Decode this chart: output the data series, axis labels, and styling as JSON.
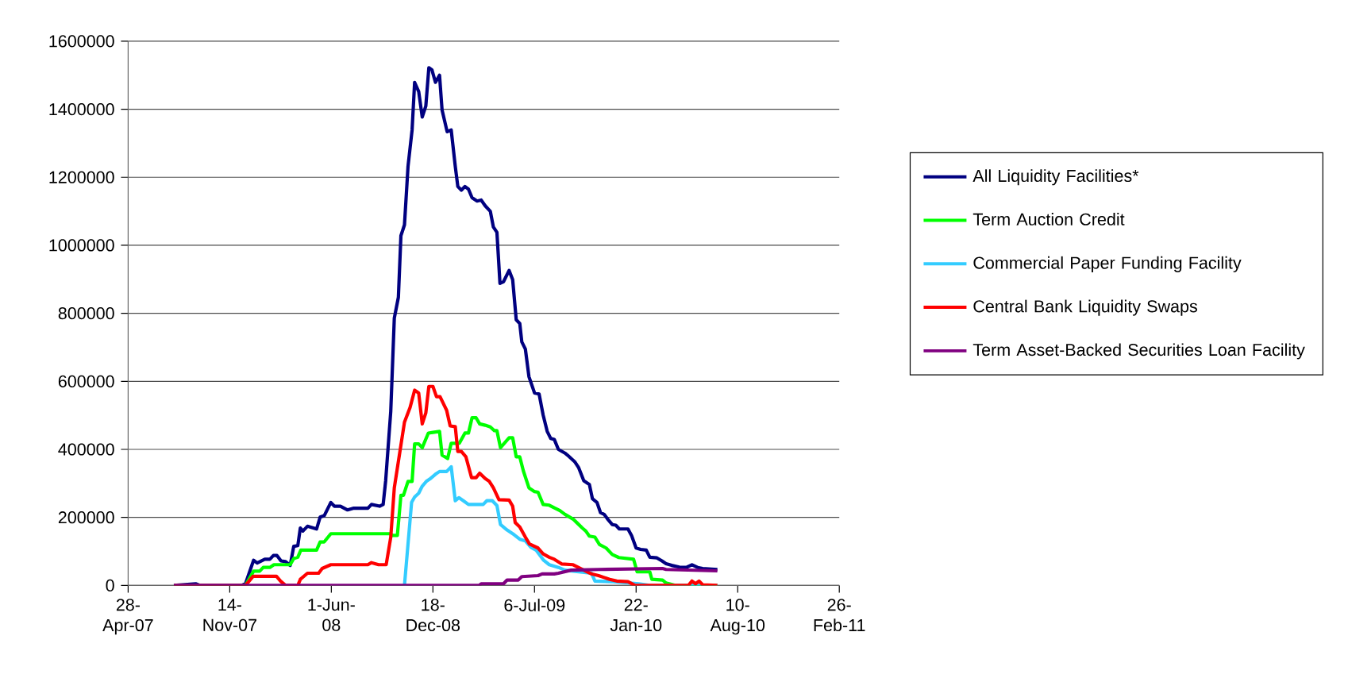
{
  "chart_data": {
    "type": "line",
    "xlim": [
      "2007-04-28",
      "2011-02-26"
    ],
    "xticks": [
      {
        "value": "2007-04-28",
        "label": "28-Apr-07"
      },
      {
        "value": "2007-11-14",
        "label": "14-Nov-07"
      },
      {
        "value": "2008-06-01",
        "label": "1-Jun-08"
      },
      {
        "value": "2008-12-18",
        "label": "18-Dec-08"
      },
      {
        "value": "2009-07-06",
        "label": "6-Jul-09"
      },
      {
        "value": "2010-01-22",
        "label": "22-Jan-10"
      },
      {
        "value": "2010-08-10",
        "label": "10-Aug-10"
      },
      {
        "value": "2011-02-26",
        "label": "26-Feb-11"
      }
    ],
    "ylim": [
      0,
      1600000
    ],
    "yticks": [
      0,
      200000,
      400000,
      600000,
      800000,
      1000000,
      1200000,
      1400000,
      1600000
    ],
    "grid": "y",
    "legend": "right",
    "marker": "none",
    "line_style": "solid",
    "series": [
      {
        "name": "All Liquidity Facilities*",
        "color": "#000080",
        "x": [
          "2007-07-27",
          "2007-09-08",
          "2007-09-17",
          "2007-12-07",
          "2007-12-15",
          "2007-12-31",
          "2008-01-07",
          "2008-01-22",
          "2008-02-01",
          "2008-02-08",
          "2008-02-15",
          "2008-02-23",
          "2008-03-03",
          "2008-03-12",
          "2008-03-19",
          "2008-03-27",
          "2008-04-01",
          "2008-04-06",
          "2008-04-15",
          "2008-05-03",
          "2008-05-10",
          "2008-05-18",
          "2008-05-31",
          "2008-06-07",
          "2008-06-19",
          "2008-07-03",
          "2008-07-14",
          "2008-08-12",
          "2008-08-19",
          "2008-09-04",
          "2008-09-11",
          "2008-09-16",
          "2008-09-26",
          "2008-10-03",
          "2008-10-11",
          "2008-10-16",
          "2008-10-23",
          "2008-10-30",
          "2008-11-07",
          "2008-11-12",
          "2008-11-20",
          "2008-11-27",
          "2008-12-04",
          "2008-12-10",
          "2008-12-16",
          "2008-12-23",
          "2008-12-31",
          "2009-01-05",
          "2009-01-15",
          "2009-01-23",
          "2009-01-31",
          "2009-02-05",
          "2009-02-12",
          "2009-02-19",
          "2009-02-26",
          "2009-03-05",
          "2009-03-15",
          "2009-03-23",
          "2009-03-31",
          "2009-04-10",
          "2009-04-16",
          "2009-04-23",
          "2009-04-29",
          "2009-05-06",
          "2009-05-17",
          "2009-05-24",
          "2009-05-31",
          "2009-06-07",
          "2009-06-11",
          "2009-06-18",
          "2009-06-25",
          "2009-07-06",
          "2009-07-15",
          "2009-07-23",
          "2009-07-31",
          "2009-08-07",
          "2009-08-14",
          "2009-08-22",
          "2009-09-04",
          "2009-09-09",
          "2009-09-23",
          "2009-10-01",
          "2009-10-11",
          "2009-10-22",
          "2009-10-28",
          "2009-11-06",
          "2009-11-13",
          "2009-11-20",
          "2009-11-27",
          "2009-12-06",
          "2009-12-13",
          "2009-12-20",
          "2010-01-06",
          "2010-01-13",
          "2010-01-22",
          "2010-01-31",
          "2010-02-11",
          "2010-02-18",
          "2010-03-04",
          "2010-03-14",
          "2010-03-22",
          "2010-04-02",
          "2010-04-17",
          "2010-05-01",
          "2010-05-12",
          "2010-05-23",
          "2010-06-02",
          "2010-07-01"
        ],
        "values": [
          0,
          5000,
          0,
          0,
          5000,
          74000,
          66000,
          77000,
          77000,
          88000,
          88000,
          72000,
          70000,
          59000,
          115000,
          117000,
          169000,
          160000,
          174000,
          166000,
          201000,
          205000,
          244000,
          233000,
          233000,
          222000,
          227000,
          227000,
          238000,
          233000,
          238000,
          308000,
          512000,
          786000,
          847000,
          1028000,
          1060000,
          1232000,
          1339000,
          1479000,
          1452000,
          1377000,
          1409000,
          1522000,
          1516000,
          1479000,
          1500000,
          1398000,
          1334000,
          1339000,
          1232000,
          1173000,
          1162000,
          1173000,
          1165000,
          1140000,
          1130000,
          1133000,
          1116000,
          1100000,
          1054000,
          1038000,
          888000,
          893000,
          926000,
          899000,
          781000,
          770000,
          716000,
          695000,
          614000,
          566000,
          563000,
          501000,
          453000,
          432000,
          429000,
          400000,
          389000,
          383000,
          364000,
          346000,
          308000,
          297000,
          255000,
          244000,
          214000,
          209000,
          195000,
          179000,
          177000,
          166000,
          166000,
          147000,
          110000,
          106000,
          104000,
          83000,
          81000,
          72000,
          64000,
          59000,
          54000,
          53000,
          61000,
          53000,
          50000,
          47000
        ]
      },
      {
        "name": "Term Auction Credit",
        "color": "#00ff00",
        "x": [
          "2007-07-27",
          "2007-12-15",
          "2007-12-31",
          "2008-01-12",
          "2008-01-19",
          "2008-02-01",
          "2008-02-09",
          "2008-03-12",
          "2008-03-19",
          "2008-03-27",
          "2008-04-02",
          "2008-05-03",
          "2008-05-10",
          "2008-05-18",
          "2008-05-31",
          "2008-09-24",
          "2008-09-30",
          "2008-10-09",
          "2008-10-16",
          "2008-10-21",
          "2008-10-30",
          "2008-11-07",
          "2008-11-12",
          "2008-11-20",
          "2008-11-27",
          "2008-12-09",
          "2008-12-18",
          "2008-12-31",
          "2009-01-05",
          "2009-01-16",
          "2009-01-23",
          "2009-02-08",
          "2009-02-19",
          "2009-02-26",
          "2009-03-05",
          "2009-03-13",
          "2009-03-20",
          "2009-03-31",
          "2009-04-10",
          "2009-04-18",
          "2009-04-23",
          "2009-04-30",
          "2009-05-17",
          "2009-05-24",
          "2009-05-31",
          "2009-06-07",
          "2009-06-14",
          "2009-06-25",
          "2009-07-06",
          "2009-07-13",
          "2009-07-23",
          "2009-08-04",
          "2009-08-14",
          "2009-08-25",
          "2009-09-04",
          "2009-09-20",
          "2009-09-27",
          "2009-10-08",
          "2009-10-15",
          "2009-10-22",
          "2009-11-02",
          "2009-11-11",
          "2009-11-24",
          "2009-12-06",
          "2009-12-19",
          "2010-01-17",
          "2010-01-24",
          "2010-02-18",
          "2010-02-22",
          "2010-03-15",
          "2010-03-22",
          "2010-04-09",
          "2010-07-01"
        ],
        "values": [
          0,
          0,
          42000,
          42000,
          53000,
          53000,
          61000,
          61000,
          79000,
          83000,
          104000,
          104000,
          128000,
          128000,
          152000,
          152000,
          147000,
          147000,
          265000,
          265000,
          306000,
          306000,
          416000,
          416000,
          405000,
          448000,
          450000,
          453000,
          383000,
          373000,
          418000,
          418000,
          448000,
          448000,
          493000,
          493000,
          475000,
          471000,
          466000,
          455000,
          455000,
          405000,
          434000,
          434000,
          378000,
          378000,
          337000,
          287000,
          276000,
          274000,
          238000,
          236000,
          228000,
          220000,
          209000,
          195000,
          185000,
          169000,
          160000,
          145000,
          142000,
          120000,
          110000,
          91000,
          82000,
          77000,
          40000,
          40000,
          18000,
          16000,
          7000,
          0,
          0
        ]
      },
      {
        "name": "Commercial Paper Funding Facility",
        "color": "#33ccff",
        "x": [
          "2008-10-23",
          "2008-11-06",
          "2008-11-12",
          "2008-11-20",
          "2008-11-27",
          "2008-12-05",
          "2008-12-12",
          "2008-12-23",
          "2008-12-31",
          "2009-01-14",
          "2009-01-23",
          "2009-01-31",
          "2009-02-07",
          "2009-02-16",
          "2009-02-26",
          "2009-03-27",
          "2009-04-03",
          "2009-04-14",
          "2009-04-23",
          "2009-04-30",
          "2009-05-13",
          "2009-05-27",
          "2009-06-07",
          "2009-06-18",
          "2009-06-29",
          "2009-07-09",
          "2009-07-24",
          "2009-08-04",
          "2009-08-22",
          "2009-09-04",
          "2009-10-01",
          "2009-10-26",
          "2009-11-02",
          "2009-12-07",
          "2010-01-27",
          "2010-02-18",
          "2010-07-01"
        ],
        "values": [
          0,
          244000,
          260000,
          271000,
          292000,
          306000,
          313000,
          327000,
          335000,
          335000,
          349000,
          249000,
          258000,
          249000,
          238000,
          238000,
          249000,
          249000,
          235000,
          179000,
          163000,
          149000,
          136000,
          131000,
          112000,
          104000,
          74000,
          61000,
          53000,
          45000,
          40000,
          36000,
          13000,
          11000,
          5000,
          0,
          0
        ]
      },
      {
        "name": "Central Bank Liquidity Swaps",
        "color": "#ff0000",
        "x": [
          "2007-07-27",
          "2007-12-15",
          "2007-12-30",
          "2008-02-14",
          "2008-02-22",
          "2008-03-03",
          "2008-03-27",
          "2008-04-01",
          "2008-04-15",
          "2008-05-07",
          "2008-05-14",
          "2008-05-31",
          "2008-08-12",
          "2008-08-19",
          "2008-09-02",
          "2008-09-17",
          "2008-09-26",
          "2008-10-03",
          "2008-10-23",
          "2008-11-03",
          "2008-11-12",
          "2008-11-20",
          "2008-11-27",
          "2008-12-04",
          "2008-12-10",
          "2008-12-18",
          "2008-12-25",
          "2009-01-01",
          "2009-01-14",
          "2009-01-21",
          "2009-01-31",
          "2009-02-05",
          "2009-02-12",
          "2009-02-21",
          "2009-03-04",
          "2009-03-13",
          "2009-03-20",
          "2009-03-31",
          "2009-04-08",
          "2009-04-16",
          "2009-04-27",
          "2009-05-17",
          "2009-05-24",
          "2009-05-29",
          "2009-06-07",
          "2009-06-18",
          "2009-06-26",
          "2009-07-13",
          "2009-07-23",
          "2009-08-04",
          "2009-08-14",
          "2009-08-29",
          "2009-09-20",
          "2009-10-11",
          "2009-10-26",
          "2009-11-09",
          "2009-12-01",
          "2009-12-15",
          "2010-01-06",
          "2010-01-20",
          "2010-05-05",
          "2010-05-12",
          "2010-05-19",
          "2010-05-26",
          "2010-06-02",
          "2010-07-01"
        ],
        "values": [
          0,
          0,
          27000,
          27000,
          13000,
          0,
          0,
          18000,
          36000,
          36000,
          50000,
          61000,
          61000,
          67000,
          61000,
          61000,
          142000,
          287000,
          480000,
          523000,
          574000,
          566000,
          475000,
          507000,
          585000,
          585000,
          555000,
          555000,
          515000,
          469000,
          467000,
          394000,
          394000,
          378000,
          317000,
          317000,
          330000,
          314000,
          306000,
          287000,
          252000,
          251000,
          233000,
          185000,
          172000,
          142000,
          122000,
          110000,
          93000,
          83000,
          77000,
          63000,
          61000,
          45000,
          34000,
          29000,
          18000,
          13000,
          11000,
          0,
          0,
          13000,
          5000,
          13000,
          2000,
          0
        ]
      },
      {
        "name": "Term Asset-Backed Securities Loan Facility",
        "color": "#800080",
        "x": [
          "2007-07-27",
          "2009-03-19",
          "2009-03-23",
          "2009-05-06",
          "2009-05-13",
          "2009-06-04",
          "2009-06-11",
          "2009-07-13",
          "2009-07-21",
          "2009-08-14",
          "2009-08-22",
          "2009-09-16",
          "2009-11-09",
          "2010-03-15",
          "2010-03-22",
          "2010-07-01"
        ],
        "values": [
          0,
          0,
          5000,
          5000,
          16000,
          16000,
          26000,
          29000,
          34000,
          34000,
          36000,
          45000,
          47000,
          50000,
          47000,
          43000
        ]
      }
    ]
  }
}
